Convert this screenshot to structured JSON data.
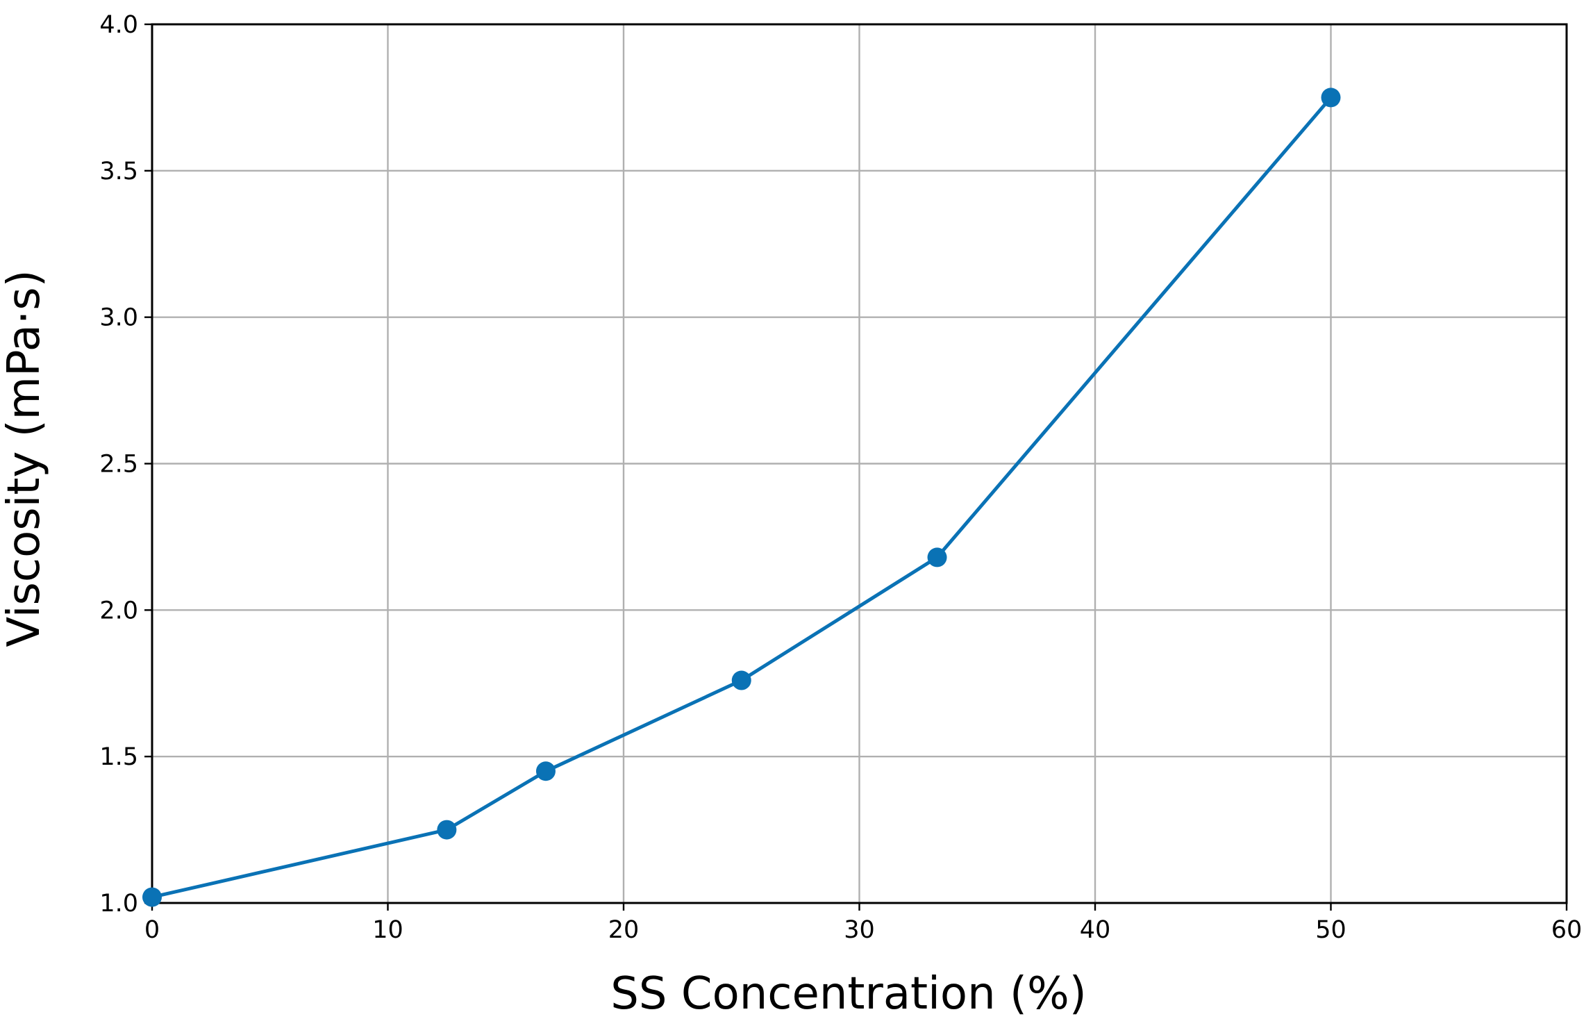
{
  "chart_data": {
    "type": "line",
    "title": "",
    "xlabel": "SS Concentration (%)",
    "ylabel": "Viscosity (mPa·s)",
    "xlim": [
      0,
      60
    ],
    "ylim": [
      1.0,
      4.0
    ],
    "xticks": [
      0,
      10,
      20,
      30,
      40,
      50,
      60
    ],
    "yticks": [
      1.0,
      1.5,
      2.0,
      2.5,
      3.0,
      3.5,
      4.0
    ],
    "xtick_labels": [
      "0",
      "10",
      "20",
      "30",
      "40",
      "50",
      "60"
    ],
    "ytick_labels": [
      "1.0",
      "1.5",
      "2.0",
      "2.5",
      "3.0",
      "3.5",
      "4.0"
    ],
    "grid": true,
    "series": [
      {
        "color": "#0a72b5",
        "marker": "circle",
        "x": [
          0,
          12.5,
          16.7,
          25,
          33.3,
          50
        ],
        "y": [
          1.02,
          1.25,
          1.45,
          1.76,
          2.18,
          3.75
        ]
      }
    ]
  }
}
